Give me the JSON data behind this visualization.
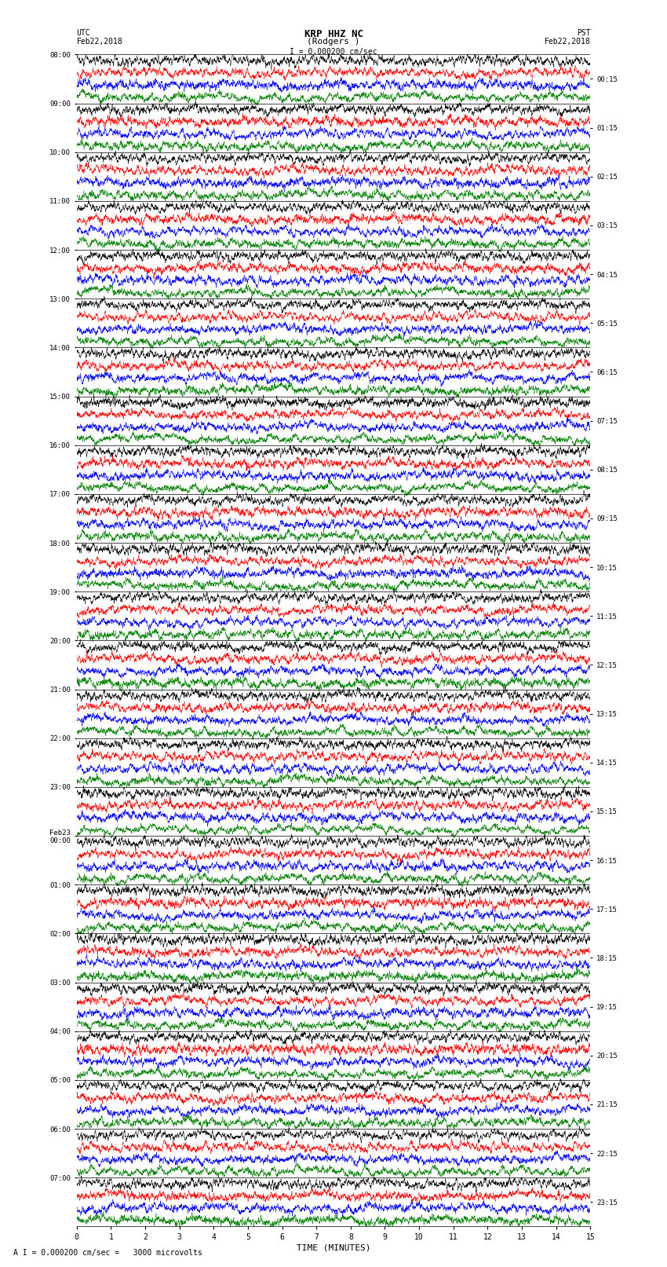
{
  "title_line1": "KRP HHZ NC",
  "title_line2": "(Rodgers )",
  "title_scale": "I = 0.000200 cm/sec",
  "left_label_line1": "UTC",
  "left_label_line2": "Feb22,2018",
  "right_label_line1": "PST",
  "right_label_line2": "Feb22,2018",
  "bottom_label": "TIME (MINUTES)",
  "bottom_scale": "A I = 0.000200 cm/sec =   3000 microvolts",
  "xlim": [
    0,
    15
  ],
  "xticks": [
    0,
    1,
    2,
    3,
    4,
    5,
    6,
    7,
    8,
    9,
    10,
    11,
    12,
    13,
    14,
    15
  ],
  "utc_times_left": [
    "08:00",
    "09:00",
    "10:00",
    "11:00",
    "12:00",
    "13:00",
    "14:00",
    "15:00",
    "16:00",
    "17:00",
    "18:00",
    "19:00",
    "20:00",
    "21:00",
    "22:00",
    "23:00",
    "Feb23\n00:00",
    "01:00",
    "02:00",
    "03:00",
    "04:00",
    "05:00",
    "06:00",
    "07:00"
  ],
  "pst_times_right": [
    "00:15",
    "01:15",
    "02:15",
    "03:15",
    "04:15",
    "05:15",
    "06:15",
    "07:15",
    "08:15",
    "09:15",
    "10:15",
    "11:15",
    "12:15",
    "13:15",
    "14:15",
    "15:15",
    "16:15",
    "17:15",
    "18:15",
    "19:15",
    "20:15",
    "21:15",
    "22:15",
    "23:15"
  ],
  "n_rows": 24,
  "traces_per_row": 4,
  "trace_colors": [
    "black",
    "red",
    "blue",
    "green"
  ],
  "fig_width": 8.5,
  "fig_height": 16.13,
  "bg_color": "white",
  "noise_freq_mult": [
    3.5,
    2.5,
    2.0,
    1.5
  ]
}
